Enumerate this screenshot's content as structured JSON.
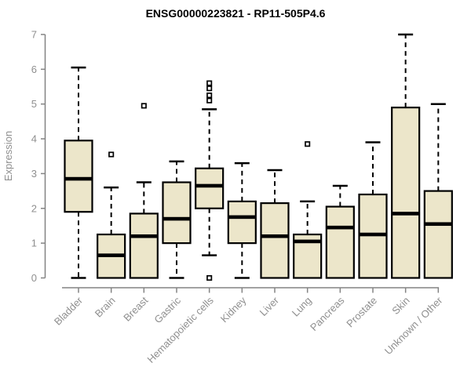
{
  "chart_data": {
    "type": "boxplot",
    "title": "ENSG00000223821 - RP11-505P4.6",
    "ylabel": "Expression",
    "xlabel": "",
    "ylim": [
      0,
      7
    ],
    "yticks": [
      0,
      1,
      2,
      3,
      4,
      5,
      6,
      7
    ],
    "grid": false,
    "legend": false,
    "categories": [
      "Bladder",
      "Brain",
      "Breast",
      "Gastric",
      "Hematopoietic cells",
      "Kidney",
      "Liver",
      "Lung",
      "Pancreas",
      "Prostate",
      "Skin",
      "Unknown / Other"
    ],
    "series": [
      {
        "name": "Bladder",
        "whisker_low": 0,
        "q1": 1.9,
        "median": 2.85,
        "q3": 3.95,
        "whisker_high": 6.05,
        "outliers": []
      },
      {
        "name": "Brain",
        "whisker_low": 0,
        "q1": 0,
        "median": 0.65,
        "q3": 1.25,
        "whisker_high": 2.6,
        "outliers": [
          3.55
        ]
      },
      {
        "name": "Breast",
        "whisker_low": 0,
        "q1": 0,
        "median": 1.2,
        "q3": 1.85,
        "whisker_high": 2.75,
        "outliers": [
          4.95
        ]
      },
      {
        "name": "Gastric",
        "whisker_low": 0,
        "q1": 1.0,
        "median": 1.7,
        "q3": 2.75,
        "whisker_high": 3.35,
        "outliers": []
      },
      {
        "name": "Hematopoietic cells",
        "whisker_low": 0.65,
        "q1": 2.0,
        "median": 2.65,
        "q3": 3.15,
        "whisker_high": 4.85,
        "outliers": [
          5.6,
          5.45,
          5.25,
          5.1,
          0
        ]
      },
      {
        "name": "Kidney",
        "whisker_low": 0,
        "q1": 1.0,
        "median": 1.75,
        "q3": 2.2,
        "whisker_high": 3.3,
        "outliers": []
      },
      {
        "name": "Liver",
        "whisker_low": 0,
        "q1": 0,
        "median": 1.2,
        "q3": 2.15,
        "whisker_high": 3.1,
        "outliers": []
      },
      {
        "name": "Lung",
        "whisker_low": 0,
        "q1": 0,
        "median": 1.05,
        "q3": 1.25,
        "whisker_high": 2.2,
        "outliers": [
          3.85
        ]
      },
      {
        "name": "Pancreas",
        "whisker_low": 0,
        "q1": 0,
        "median": 1.45,
        "q3": 2.05,
        "whisker_high": 2.65,
        "outliers": []
      },
      {
        "name": "Prostate",
        "whisker_low": 0,
        "q1": 0,
        "median": 1.25,
        "q3": 2.4,
        "whisker_high": 3.9,
        "outliers": []
      },
      {
        "name": "Skin",
        "whisker_low": 0,
        "q1": 0,
        "median": 1.85,
        "q3": 4.9,
        "whisker_high": 7.0,
        "outliers": []
      },
      {
        "name": "Unknown / Other",
        "whisker_low": 0,
        "q1": 0,
        "median": 1.55,
        "q3": 2.5,
        "whisker_high": 5.0,
        "outliers": []
      }
    ],
    "colors": {
      "background": "#ffffff",
      "box_fill": "#ece6ca",
      "box_stroke": "#000000",
      "median": "#000000",
      "whisker": "#000000",
      "outlier_stroke": "#000000",
      "outlier_fill": "#ffffff",
      "axis_line": "#848484",
      "tick_label": "#8f8f8f",
      "title": "#000000"
    }
  }
}
